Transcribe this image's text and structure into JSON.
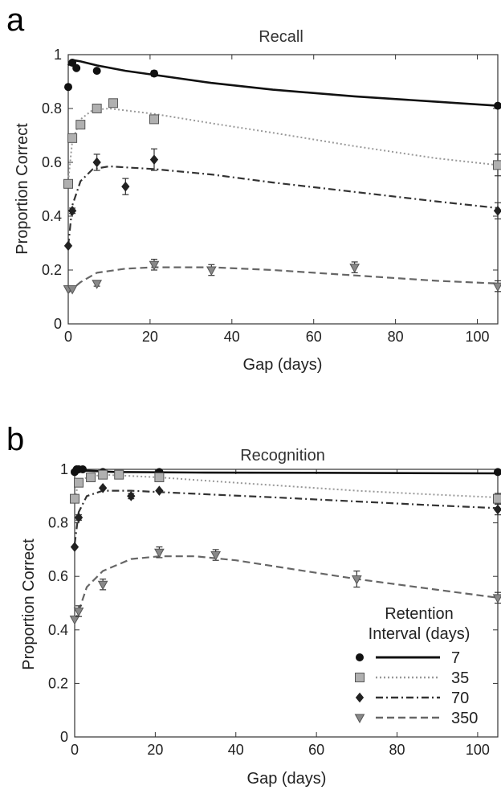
{
  "figure": {
    "panels": [
      "a",
      "b"
    ]
  },
  "chart_data": [
    {
      "type": "line",
      "panel": "a",
      "title": "Recall",
      "xlabel": "Gap (days)",
      "ylabel": "Proportion Correct",
      "xlim": [
        0,
        105
      ],
      "ylim": [
        0,
        1
      ],
      "xticks": [
        0,
        20,
        40,
        60,
        80,
        100
      ],
      "yticks": [
        0,
        0.2,
        0.4,
        0.6,
        0.8,
        1
      ],
      "ytick_labels": [
        "0",
        "0.2",
        "0.4",
        "0.6",
        "0.8",
        "1"
      ],
      "series": [
        {
          "name": "7",
          "color": "#111111",
          "dash": "solid",
          "marker": "circle",
          "points": [
            [
              0,
              0.88
            ],
            [
              1,
              0.97
            ],
            [
              2,
              0.95
            ],
            [
              7,
              0.94
            ],
            [
              21,
              0.93
            ],
            [
              105,
              0.81
            ]
          ],
          "errors": [
            0,
            0,
            0,
            0,
            0.01,
            0
          ],
          "fit": [
            [
              0,
              0.96
            ],
            [
              1,
              0.98
            ],
            [
              3,
              0.975
            ],
            [
              7,
              0.96
            ],
            [
              14,
              0.94
            ],
            [
              21,
              0.925
            ],
            [
              35,
              0.895
            ],
            [
              50,
              0.87
            ],
            [
              70,
              0.845
            ],
            [
              90,
              0.825
            ],
            [
              105,
              0.81
            ]
          ]
        },
        {
          "name": "35",
          "color": "#999999",
          "dash": "dotted",
          "marker": "square",
          "points": [
            [
              0,
              0.52
            ],
            [
              1,
              0.69
            ],
            [
              3,
              0.74
            ],
            [
              7,
              0.8
            ],
            [
              11,
              0.82
            ],
            [
              21,
              0.76
            ],
            [
              105,
              0.59
            ]
          ],
          "errors": [
            0,
            0,
            0,
            0,
            0,
            0.01,
            0.04
          ],
          "fit": [
            [
              0,
              0.53
            ],
            [
              1,
              0.68
            ],
            [
              3,
              0.76
            ],
            [
              6,
              0.795
            ],
            [
              10,
              0.8
            ],
            [
              21,
              0.78
            ],
            [
              35,
              0.745
            ],
            [
              50,
              0.71
            ],
            [
              70,
              0.66
            ],
            [
              90,
              0.615
            ],
            [
              105,
              0.59
            ]
          ]
        },
        {
          "name": "70",
          "color": "#333333",
          "dash": "dashdot",
          "marker": "diamond",
          "points": [
            [
              0,
              0.29
            ],
            [
              1,
              0.42
            ],
            [
              7,
              0.6
            ],
            [
              14,
              0.51
            ],
            [
              21,
              0.61
            ],
            [
              105,
              0.42
            ]
          ],
          "errors": [
            0,
            0.01,
            0.03,
            0.03,
            0.04,
            0.03
          ],
          "fit": [
            [
              0,
              0.29
            ],
            [
              1,
              0.44
            ],
            [
              3,
              0.53
            ],
            [
              6,
              0.575
            ],
            [
              10,
              0.585
            ],
            [
              21,
              0.575
            ],
            [
              35,
              0.555
            ],
            [
              50,
              0.525
            ],
            [
              70,
              0.49
            ],
            [
              90,
              0.455
            ],
            [
              105,
              0.43
            ]
          ]
        },
        {
          "name": "350",
          "color": "#666666",
          "dash": "dashed",
          "marker": "triangle-down",
          "points": [
            [
              0,
              0.13
            ],
            [
              1,
              0.13
            ],
            [
              7,
              0.15
            ],
            [
              21,
              0.22
            ],
            [
              35,
              0.2
            ],
            [
              70,
              0.21
            ],
            [
              105,
              0.14
            ]
          ],
          "errors": [
            0,
            0,
            0.01,
            0.02,
            0.02,
            0.02,
            0.02
          ],
          "fit": [
            [
              0,
              0.115
            ],
            [
              1,
              0.13
            ],
            [
              3,
              0.155
            ],
            [
              7,
              0.19
            ],
            [
              14,
              0.205
            ],
            [
              21,
              0.21
            ],
            [
              35,
              0.21
            ],
            [
              50,
              0.2
            ],
            [
              70,
              0.18
            ],
            [
              90,
              0.16
            ],
            [
              105,
              0.15
            ]
          ]
        }
      ]
    },
    {
      "type": "line",
      "panel": "b",
      "title": "Recognition",
      "xlabel": "Gap (days)",
      "ylabel": "Proportion Correct",
      "xlim": [
        0,
        105
      ],
      "ylim": [
        0,
        1
      ],
      "xticks": [
        0,
        20,
        40,
        60,
        80,
        100
      ],
      "yticks": [
        0,
        0.2,
        0.4,
        0.6,
        0.8,
        1
      ],
      "ytick_labels": [
        "0",
        "0.2",
        "0.4",
        "0.6",
        "0.8",
        "1"
      ],
      "series": [
        {
          "name": "7",
          "color": "#111111",
          "dash": "solid",
          "marker": "circle",
          "points": [
            [
              0,
              0.99
            ],
            [
              0.5,
              1.0
            ],
            [
              1,
              1.0
            ],
            [
              2,
              1.0
            ],
            [
              7,
              0.99
            ],
            [
              21,
              0.99
            ],
            [
              105,
              0.99
            ]
          ],
          "errors": [
            0,
            0,
            0,
            0,
            0,
            0,
            0
          ],
          "fit": [
            [
              0,
              0.99
            ],
            [
              1,
              0.995
            ],
            [
              3,
              0.995
            ],
            [
              10,
              0.99
            ],
            [
              30,
              0.988
            ],
            [
              60,
              0.987
            ],
            [
              105,
              0.985
            ]
          ]
        },
        {
          "name": "35",
          "color": "#999999",
          "dash": "dotted",
          "marker": "square",
          "points": [
            [
              0,
              0.89
            ],
            [
              1,
              0.95
            ],
            [
              4,
              0.97
            ],
            [
              7,
              0.98
            ],
            [
              11,
              0.98
            ],
            [
              21,
              0.97
            ],
            [
              105,
              0.89
            ]
          ],
          "errors": [
            0,
            0,
            0,
            0,
            0,
            0,
            0.02
          ],
          "fit": [
            [
              0,
              0.89
            ],
            [
              1,
              0.95
            ],
            [
              3,
              0.97
            ],
            [
              7,
              0.98
            ],
            [
              14,
              0.975
            ],
            [
              21,
              0.97
            ],
            [
              35,
              0.955
            ],
            [
              50,
              0.94
            ],
            [
              70,
              0.92
            ],
            [
              90,
              0.905
            ],
            [
              105,
              0.895
            ]
          ]
        },
        {
          "name": "70",
          "color": "#333333",
          "dash": "dashdot",
          "marker": "diamond",
          "points": [
            [
              0,
              0.71
            ],
            [
              1,
              0.82
            ],
            [
              7,
              0.93
            ],
            [
              14,
              0.9
            ],
            [
              21,
              0.92
            ],
            [
              105,
              0.85
            ]
          ],
          "errors": [
            0,
            0.01,
            0,
            0.01,
            0,
            0.02
          ],
          "fit": [
            [
              0,
              0.72
            ],
            [
              1,
              0.84
            ],
            [
              3,
              0.9
            ],
            [
              7,
              0.92
            ],
            [
              14,
              0.92
            ],
            [
              21,
              0.915
            ],
            [
              35,
              0.905
            ],
            [
              50,
              0.895
            ],
            [
              70,
              0.88
            ],
            [
              90,
              0.865
            ],
            [
              105,
              0.855
            ]
          ]
        },
        {
          "name": "350",
          "color": "#666666",
          "dash": "dashed",
          "marker": "triangle-down",
          "points": [
            [
              0,
              0.44
            ],
            [
              1,
              0.47
            ],
            [
              7,
              0.57
            ],
            [
              21,
              0.69
            ],
            [
              35,
              0.68
            ],
            [
              70,
              0.59
            ],
            [
              105,
              0.52
            ]
          ],
          "errors": [
            0,
            0.02,
            0.02,
            0.02,
            0.02,
            0.03,
            0.02
          ],
          "fit": [
            [
              0,
              0.43
            ],
            [
              1,
              0.47
            ],
            [
              3,
              0.56
            ],
            [
              7,
              0.62
            ],
            [
              14,
              0.665
            ],
            [
              21,
              0.675
            ],
            [
              30,
              0.675
            ],
            [
              40,
              0.66
            ],
            [
              55,
              0.625
            ],
            [
              70,
              0.59
            ],
            [
              90,
              0.55
            ],
            [
              105,
              0.52
            ]
          ]
        }
      ]
    }
  ],
  "legend": {
    "title_line1": "Retention",
    "title_line2": "Interval (days)",
    "placement": "bottom-right of panel b",
    "items": [
      "7",
      "35",
      "70",
      "350"
    ]
  }
}
